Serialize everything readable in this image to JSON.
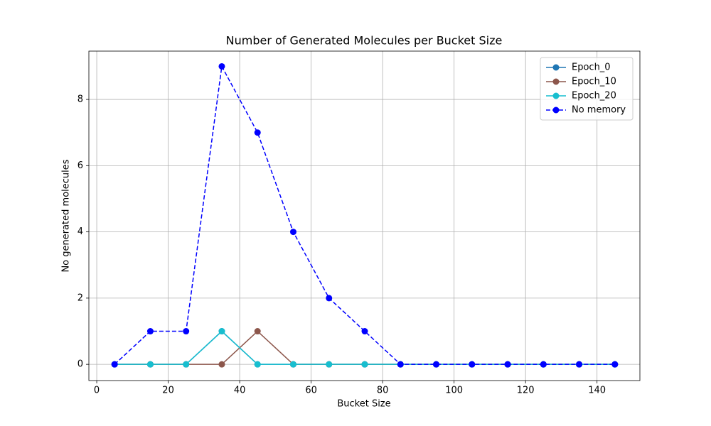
{
  "chart_data": {
    "type": "line",
    "title": "Number of Generated Molecules per Bucket Size",
    "x_label": "Bucket Size",
    "y_label": "No generated molecules",
    "x": [
      5,
      15,
      25,
      35,
      45,
      55,
      65,
      75,
      85,
      95,
      105,
      115,
      125,
      135,
      145
    ],
    "series": [
      {
        "name": "Epoch_0",
        "color": "#1f77b4",
        "linestyle": "solid",
        "values": [
          0,
          0,
          0,
          1,
          0,
          0,
          0,
          0,
          0,
          0,
          0,
          0,
          0,
          0,
          0
        ]
      },
      {
        "name": "Epoch_10",
        "color": "#8c564b",
        "linestyle": "solid",
        "values": [
          0,
          0,
          0,
          0,
          1,
          0,
          0,
          0,
          0,
          0,
          0,
          0,
          0,
          0,
          0
        ]
      },
      {
        "name": "Epoch_20",
        "color": "#17becf",
        "linestyle": "solid",
        "values": [
          0,
          0,
          0,
          1,
          0,
          0,
          0,
          0,
          0,
          0,
          0,
          0,
          0,
          0,
          0
        ]
      },
      {
        "name": "No memory",
        "color": "#0000ff",
        "linestyle": "dashed",
        "values": [
          0,
          1,
          1,
          9,
          7,
          4,
          2,
          1,
          0,
          0,
          0,
          0,
          0,
          0,
          0
        ]
      }
    ],
    "xlim": [
      -2.2,
      152
    ],
    "ylim": [
      -0.49,
      9.46
    ],
    "xticks": [
      0,
      20,
      40,
      60,
      80,
      100,
      120,
      140
    ],
    "yticks": [
      0,
      2,
      4,
      6,
      8
    ],
    "grid": true,
    "legend": "upper right"
  }
}
